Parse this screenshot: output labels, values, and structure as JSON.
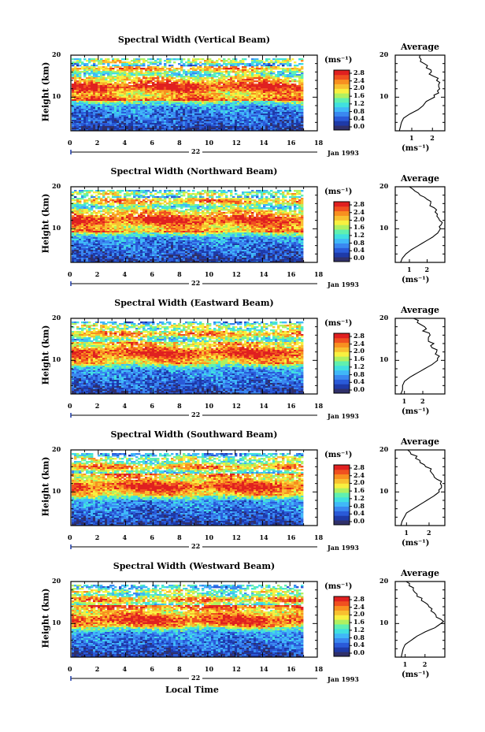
{
  "figure": {
    "x_axis_title": "Local Time",
    "day_label": "22",
    "date_label": "Jan 1993",
    "y_axis_title": "Height (km)",
    "unit_label": "(ms⁻¹)",
    "profile_title": "Average",
    "profile_xlabel": "(ms⁻¹)"
  },
  "colors": {
    "scale": [
      "#30306a",
      "#1e3aa8",
      "#2a5ad8",
      "#3a88f0",
      "#40b8f8",
      "#40e0e0",
      "#60f0b0",
      "#b0f060",
      "#f8f040",
      "#f8c030",
      "#f89020",
      "#f05020",
      "#e02020"
    ]
  },
  "chart_data": [
    {
      "type": "heatmap",
      "title": "Spectral Width (Vertical Beam)",
      "x_label": "Local Time",
      "y_label": "Height (km)",
      "xlim": [
        0,
        18
      ],
      "ylim": [
        2,
        20
      ],
      "x_ticks": [
        0,
        2,
        4,
        6,
        8,
        10,
        12,
        14,
        16,
        18
      ],
      "y_ticks": [
        10,
        20
      ],
      "colorbar": {
        "ticks": [
          "2.8",
          "2.4",
          "2.0",
          "1.6",
          "1.2",
          "0.8",
          "0.4",
          "0.0"
        ],
        "unit": "(ms⁻¹)"
      },
      "profile": {
        "title": "Average",
        "xlabel": "(ms⁻¹)",
        "x_ticks": [
          "1",
          "2"
        ],
        "xlim": [
          0.2,
          2.6
        ],
        "height_km": [
          2,
          3,
          4,
          5,
          6,
          7,
          8,
          9,
          10,
          11,
          12,
          13,
          14,
          15,
          16,
          17,
          18,
          19,
          20
        ],
        "values": [
          0.4,
          0.45,
          0.5,
          0.6,
          0.9,
          1.3,
          1.55,
          1.7,
          2.1,
          2.3,
          2.35,
          2.3,
          2.2,
          2.05,
          1.95,
          1.7,
          1.6,
          1.45,
          1.4
        ]
      }
    },
    {
      "type": "heatmap",
      "title": "Spectral Width (Northward Beam)",
      "x_label": "Local Time",
      "y_label": "Height (km)",
      "xlim": [
        0,
        18
      ],
      "ylim": [
        2,
        20
      ],
      "x_ticks": [
        0,
        2,
        4,
        6,
        8,
        10,
        12,
        14,
        16,
        18
      ],
      "y_ticks": [
        10,
        20
      ],
      "colorbar": {
        "ticks": [
          "2.8",
          "2.4",
          "2.0",
          "1.6",
          "1.2",
          "0.8",
          "0.4",
          "0.0"
        ],
        "unit": "(ms⁻¹)"
      },
      "profile": {
        "title": "Average",
        "xlabel": "(ms⁻¹)",
        "x_ticks": [
          "1",
          "2"
        ],
        "xlim": [
          0.2,
          3.0
        ],
        "height_km": [
          2,
          3,
          4,
          5,
          6,
          7,
          8,
          9,
          10,
          11,
          12,
          13,
          14,
          15,
          16,
          17,
          18,
          19,
          20
        ],
        "values": [
          0.5,
          0.6,
          0.8,
          1.1,
          1.5,
          1.9,
          2.3,
          2.6,
          2.75,
          2.8,
          2.7,
          2.55,
          2.45,
          2.4,
          2.2,
          2.0,
          1.6,
          1.3,
          1.0
        ]
      }
    },
    {
      "type": "heatmap",
      "title": "Spectral Width (Eastward Beam)",
      "x_label": "Local Time",
      "y_label": "Height (km)",
      "xlim": [
        0,
        18
      ],
      "ylim": [
        2,
        20
      ],
      "x_ticks": [
        0,
        2,
        4,
        6,
        8,
        10,
        12,
        14,
        16,
        18
      ],
      "y_ticks": [
        10,
        20
      ],
      "colorbar": {
        "ticks": [
          "2.8",
          "2.4",
          "2.0",
          "1.6",
          "1.2",
          "0.8",
          "0.4",
          "0.0"
        ],
        "unit": "(ms⁻¹)"
      },
      "profile": {
        "title": "Average",
        "xlabel": "(ms⁻¹)",
        "x_ticks": [
          "1",
          "2"
        ],
        "xlim": [
          0.5,
          3.2
        ],
        "height_km": [
          2,
          3,
          4,
          5,
          6,
          7,
          8,
          9,
          10,
          11,
          12,
          13,
          14,
          15,
          16,
          17,
          18,
          19,
          20
        ],
        "values": [
          0.8,
          0.9,
          0.9,
          1.0,
          1.3,
          1.7,
          2.1,
          2.5,
          2.8,
          2.9,
          2.75,
          2.5,
          2.6,
          2.3,
          2.4,
          2.0,
          2.1,
          1.7,
          1.5
        ]
      }
    },
    {
      "type": "heatmap",
      "title": "Spectral Width (Southward Beam)",
      "x_label": "Local Time",
      "y_label": "Height (km)",
      "xlim": [
        0,
        18
      ],
      "ylim": [
        2,
        20
      ],
      "x_ticks": [
        0,
        2,
        4,
        6,
        8,
        10,
        12,
        14,
        16,
        18
      ],
      "y_ticks": [
        10,
        20
      ],
      "colorbar": {
        "ticks": [
          "2.8",
          "2.4",
          "2.0",
          "1.6",
          "1.2",
          "0.8",
          "0.4",
          "0.0"
        ],
        "unit": "(ms⁻¹)"
      },
      "profile": {
        "title": "Average",
        "xlabel": "(ms⁻¹)",
        "x_ticks": [
          "1",
          "2"
        ],
        "xlim": [
          0.5,
          2.7
        ],
        "height_km": [
          2,
          3,
          4,
          5,
          6,
          7,
          8,
          9,
          10,
          11,
          12,
          13,
          14,
          15,
          16,
          17,
          18,
          19,
          20
        ],
        "values": [
          0.75,
          0.8,
          0.9,
          1.0,
          1.3,
          1.6,
          1.9,
          2.2,
          2.45,
          2.55,
          2.5,
          2.35,
          2.2,
          2.05,
          1.85,
          1.6,
          1.4,
          1.2,
          1.05
        ]
      }
    },
    {
      "type": "heatmap",
      "title": "Spectral Width (Westward Beam)",
      "x_label": "Local Time",
      "y_label": "Height (km)",
      "xlim": [
        0,
        18
      ],
      "ylim": [
        2,
        20
      ],
      "x_ticks": [
        0,
        2,
        4,
        6,
        8,
        10,
        12,
        14,
        16,
        18
      ],
      "y_ticks": [
        10,
        20
      ],
      "colorbar": {
        "ticks": [
          "2.8",
          "2.4",
          "2.0",
          "1.6",
          "1.2",
          "0.8",
          "0.4",
          "0.0"
        ],
        "unit": "(ms⁻¹)"
      },
      "profile": {
        "title": "Average",
        "xlabel": "(ms⁻¹)",
        "x_ticks": [
          "1",
          "2"
        ],
        "xlim": [
          0.5,
          3.0
        ],
        "height_km": [
          2,
          3,
          4,
          5,
          6,
          7,
          8,
          9,
          10,
          11,
          12,
          13,
          14,
          15,
          16,
          17,
          18,
          19,
          20
        ],
        "values": [
          0.8,
          0.85,
          0.9,
          1.0,
          1.3,
          1.6,
          2.0,
          2.5,
          2.8,
          2.8,
          2.55,
          2.3,
          2.2,
          2.0,
          1.85,
          1.6,
          1.4,
          1.2,
          1.05
        ]
      }
    }
  ]
}
